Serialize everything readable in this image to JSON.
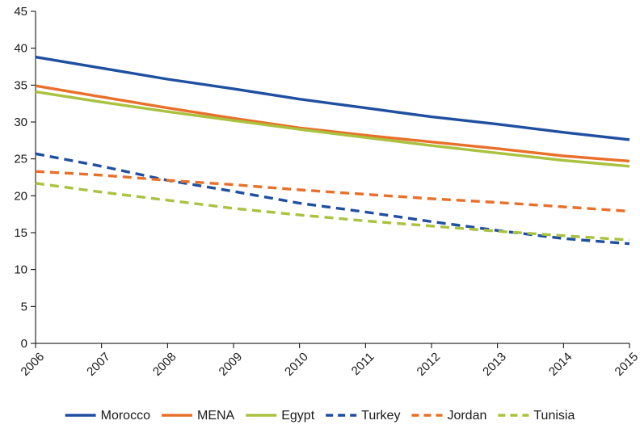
{
  "chart_data": {
    "type": "line",
    "title": "",
    "xlabel": "",
    "ylabel": "",
    "x": [
      "2006",
      "2007",
      "2008",
      "2009",
      "2010",
      "2011",
      "2012",
      "2013",
      "2014",
      "2015"
    ],
    "y_ticks": [
      "0",
      "5",
      "10",
      "15",
      "20",
      "25",
      "30",
      "35",
      "40",
      "45"
    ],
    "ylim": [
      0,
      45
    ],
    "grid": false,
    "legend": "bottom",
    "series": [
      {
        "name": "Morocco",
        "color": "#1f4fa0",
        "dash": "solid",
        "values": [
          38.8,
          37.3,
          35.8,
          34.5,
          33.1,
          31.9,
          30.7,
          29.7,
          28.6,
          27.6
        ]
      },
      {
        "name": "MENA",
        "color": "#e8702a",
        "dash": "solid",
        "values": [
          34.9,
          33.4,
          31.9,
          30.5,
          29.2,
          28.2,
          27.3,
          26.4,
          25.4,
          24.7
        ]
      },
      {
        "name": "Egypt",
        "color": "#a9c23f",
        "dash": "solid",
        "values": [
          34.1,
          32.7,
          31.4,
          30.2,
          29.0,
          27.9,
          26.8,
          25.8,
          24.8,
          24.0
        ]
      },
      {
        "name": "Turkey",
        "color": "#1f4fa0",
        "dash": "dashed",
        "values": [
          25.7,
          24.0,
          22.1,
          20.6,
          19.0,
          17.8,
          16.5,
          15.3,
          14.2,
          13.5
        ]
      },
      {
        "name": "Jordan",
        "color": "#e8702a",
        "dash": "dashed",
        "values": [
          23.3,
          22.8,
          22.1,
          21.5,
          20.8,
          20.2,
          19.6,
          19.1,
          18.5,
          17.9
        ]
      },
      {
        "name": "Tunisia",
        "color": "#a9c23f",
        "dash": "dashed",
        "values": [
          21.7,
          20.5,
          19.4,
          18.3,
          17.4,
          16.6,
          15.9,
          15.2,
          14.6,
          14.0
        ]
      }
    ]
  }
}
